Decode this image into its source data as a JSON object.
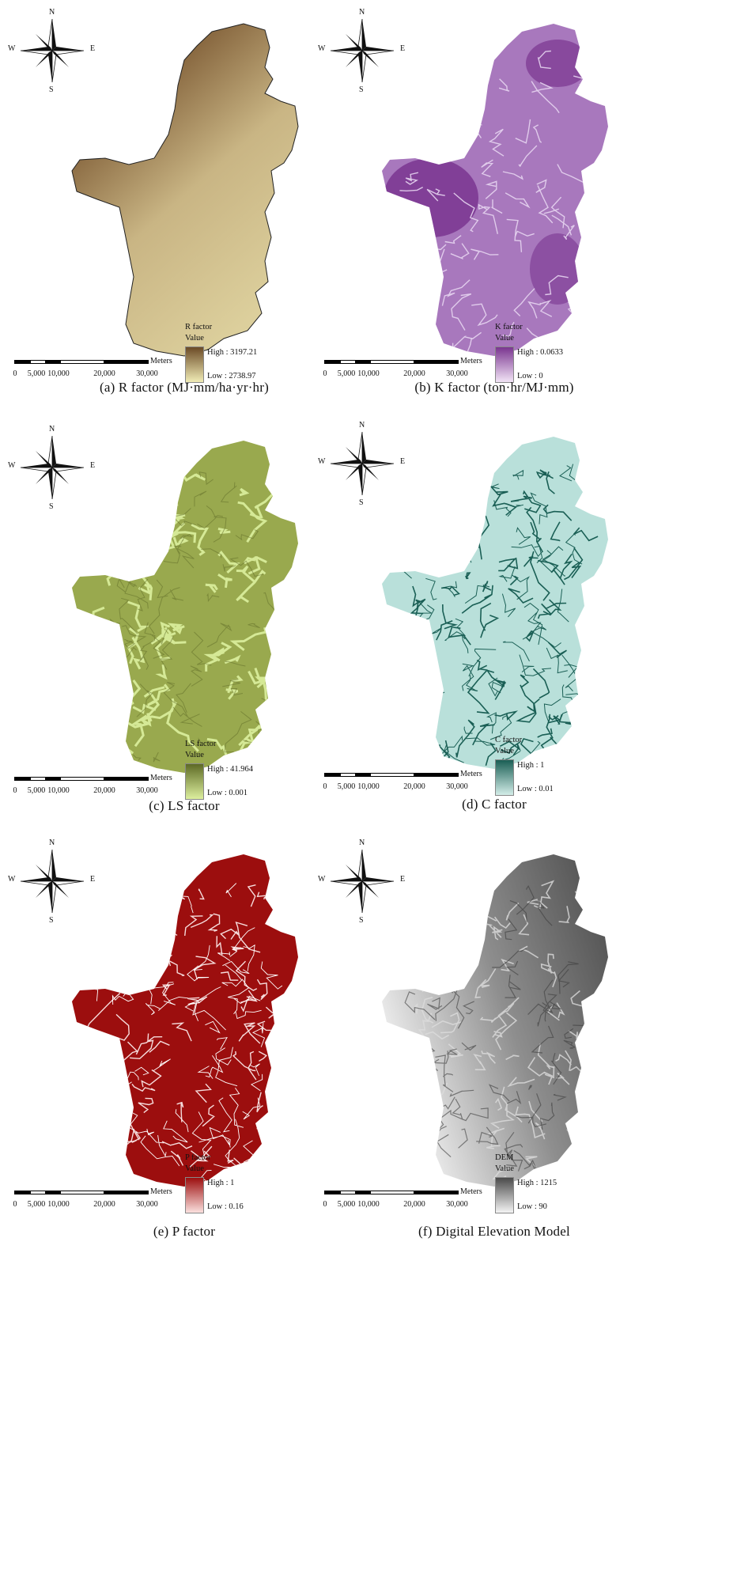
{
  "compass": {
    "n": "N",
    "s": "S",
    "e": "E",
    "w": "W"
  },
  "scale": {
    "ticks": [
      "0",
      "5,000",
      "10,000",
      "20,000",
      "30,000"
    ],
    "unit": "Meters"
  },
  "panels": [
    {
      "caption": "(a)  R  factor  (MJ·mm/ha·yr·hr)",
      "legend_title": "R factor",
      "legend_sub": "Value",
      "high": "High : 3197.21",
      "low": "Low : 2738.97",
      "colors": {
        "high": "#6b4a26",
        "low": "#f1ecb6"
      }
    },
    {
      "caption": "(b)  K  factor  (ton·hr/MJ·mm)",
      "legend_title": "K factor",
      "legend_sub": "Value",
      "high": "High : 0.0633",
      "low": "Low : 0",
      "colors": {
        "high": "#7a3590",
        "low": "#f2e4f6"
      }
    },
    {
      "caption": "(c)  LS  factor",
      "legend_title": "LS factor",
      "legend_sub": "Value",
      "high": "High : 41.964",
      "low": "Low : 0.001",
      "colors": {
        "high": "#5e6a25",
        "low": "#dcef9e"
      }
    },
    {
      "caption": "(d)  C  factor",
      "legend_title": "C factor",
      "legend_sub": "Value",
      "high": "High : 1",
      "low": "Low : 0.01",
      "colors": {
        "high": "#1a5f55",
        "low": "#d3ede8"
      }
    },
    {
      "caption": "(e)  P  factor",
      "legend_title": "P factor",
      "legend_sub": "Value",
      "high": "High : 1",
      "low": "Low : 0.16",
      "colors": {
        "high": "#9c0e0e",
        "low": "#fbe0de"
      }
    },
    {
      "caption": "(f)  Digital  Elevation  Model",
      "legend_title": "DEM",
      "legend_sub": "Value",
      "high": "High : 1215",
      "low": "Low : 90",
      "colors": {
        "high": "#4a4a4a",
        "low": "#f4f4f4"
      }
    }
  ]
}
